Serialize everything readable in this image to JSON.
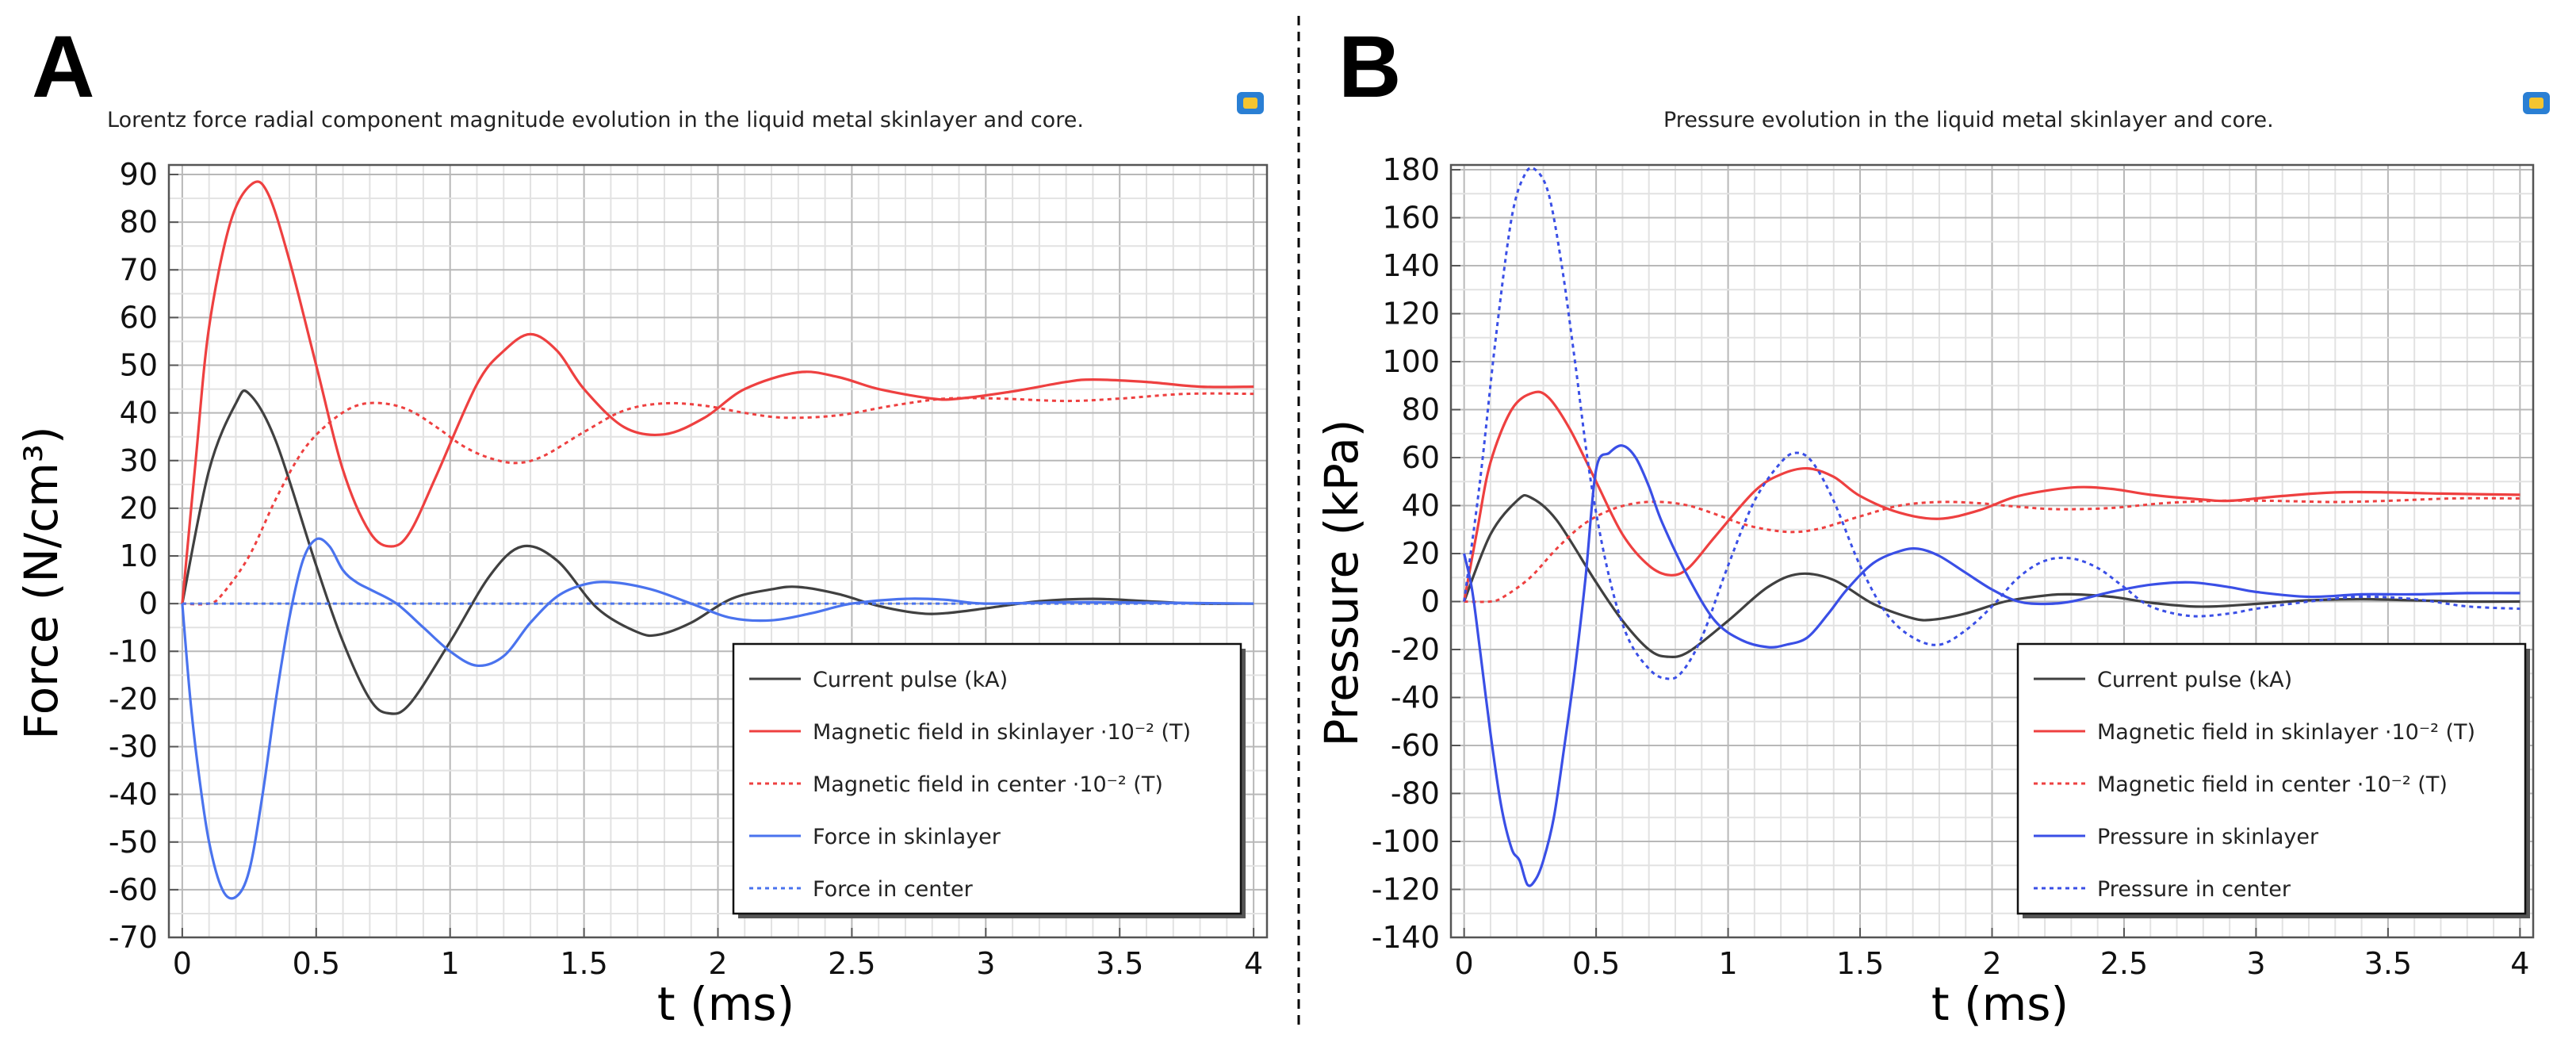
{
  "panels": [
    {
      "letter": "A"
    },
    {
      "letter": "B"
    }
  ],
  "chart_data": [
    {
      "type": "line",
      "panel": "A",
      "title": "Lorentz force radial component magnitude evolution in the liquid metal skinlayer and core.",
      "xlabel": "t (ms)",
      "ylabel": "Force (N/cm³)",
      "xlim": [
        -0.05,
        4.05
      ],
      "ylim": [
        -70,
        92
      ],
      "xticks": [
        0,
        0.5,
        1,
        1.5,
        2,
        2.5,
        3,
        3.5,
        4
      ],
      "xtick_labels": [
        "0",
        "0.5",
        "1",
        "1.5",
        "2",
        "2.5",
        "3",
        "3.5",
        "4"
      ],
      "yticks": [
        -70,
        -60,
        -50,
        -40,
        -30,
        -20,
        -10,
        0,
        10,
        20,
        30,
        40,
        50,
        60,
        70,
        80,
        90
      ],
      "ytick_labels": [
        "-70",
        "-60",
        "-50",
        "-40",
        "-30",
        "-20",
        "-10",
        "0",
        "10",
        "20",
        "30",
        "40",
        "50",
        "60",
        "70",
        "80",
        "90"
      ],
      "grid": true,
      "legend_position": "bottom-right",
      "series": [
        {
          "name": "Current pulse (kA)",
          "color": "#404040",
          "style": "solid",
          "x": [
            0,
            0.1,
            0.2,
            0.25,
            0.35,
            0.5,
            0.6,
            0.7,
            0.77,
            0.85,
            1.0,
            1.15,
            1.27,
            1.4,
            1.55,
            1.7,
            1.78,
            1.9,
            2.05,
            2.2,
            2.3,
            2.45,
            2.6,
            2.75,
            2.85,
            3.0,
            3.2,
            3.4,
            3.6,
            3.8,
            4.0
          ],
          "y": [
            0,
            28,
            42,
            44,
            34,
            8,
            -8,
            -20,
            -23,
            -21,
            -8,
            6,
            12,
            9,
            -1,
            -6,
            -6.5,
            -4,
            1,
            3,
            3.5,
            2,
            -0.5,
            -2,
            -2,
            -1,
            0.5,
            1,
            0.5,
            0,
            0
          ]
        },
        {
          "name": "Magnetic field in skinlayer ·10⁻² (T)",
          "color": "#ee4040",
          "style": "solid",
          "x": [
            0,
            0.05,
            0.1,
            0.18,
            0.26,
            0.32,
            0.4,
            0.5,
            0.6,
            0.7,
            0.78,
            0.85,
            0.95,
            1.1,
            1.2,
            1.3,
            1.4,
            1.5,
            1.65,
            1.8,
            1.95,
            2.1,
            2.3,
            2.45,
            2.6,
            2.8,
            2.9,
            3.1,
            3.3,
            3.4,
            3.6,
            3.8,
            4.0
          ],
          "y": [
            0,
            30,
            58,
            80,
            88,
            86,
            72,
            50,
            28,
            15,
            12,
            15,
            27,
            46,
            53,
            56.5,
            53,
            45,
            37,
            35.5,
            39,
            45,
            48.5,
            47.5,
            45,
            43,
            43,
            44.5,
            46.5,
            47,
            46.5,
            45.5,
            45.5
          ]
        },
        {
          "name": "Magnetic field in center ·10⁻² (T)",
          "color": "#ee4040",
          "style": "dotted",
          "x": [
            0,
            0.1,
            0.15,
            0.25,
            0.35,
            0.45,
            0.55,
            0.65,
            0.75,
            0.85,
            0.95,
            1.05,
            1.15,
            1.25,
            1.35,
            1.5,
            1.65,
            1.8,
            1.95,
            2.1,
            2.25,
            2.45,
            2.65,
            2.85,
            3.05,
            3.3,
            3.5,
            3.75,
            4.0
          ],
          "y": [
            0,
            0,
            2,
            10,
            22,
            32,
            38,
            41.5,
            42,
            40.5,
            37,
            33,
            30.5,
            29.5,
            31,
            36,
            40.5,
            42,
            41.5,
            40,
            39,
            39.5,
            41.5,
            43,
            43,
            42.5,
            43,
            44,
            44
          ]
        },
        {
          "name": "Force in skinlayer",
          "color": "#4a73ee",
          "style": "solid",
          "x": [
            0,
            0.03,
            0.06,
            0.1,
            0.15,
            0.2,
            0.25,
            0.3,
            0.35,
            0.4,
            0.45,
            0.5,
            0.55,
            0.6,
            0.65,
            0.7,
            0.8,
            0.9,
            1.0,
            1.1,
            1.2,
            1.3,
            1.4,
            1.5,
            1.6,
            1.75,
            1.9,
            2.05,
            2.2,
            2.35,
            2.5,
            2.7,
            2.85,
            3.0,
            3.3,
            3.6,
            4.0
          ],
          "y": [
            0,
            -20,
            -35,
            -50,
            -60,
            -61.5,
            -56,
            -40,
            -20,
            -3,
            9,
            13.5,
            12,
            7,
            4.5,
            3,
            0,
            -5,
            -10,
            -13,
            -11,
            -4,
            1.5,
            4,
            4.5,
            3,
            0,
            -3,
            -3.5,
            -2,
            0,
            1,
            0.8,
            0,
            0.3,
            0.2,
            0
          ]
        },
        {
          "name": "Force in center",
          "color": "#4a73ee",
          "style": "dotted",
          "x": [
            0,
            4.0
          ],
          "y": [
            0,
            0
          ]
        }
      ]
    },
    {
      "type": "line",
      "panel": "B",
      "title": "Pressure evolution in the liquid metal skinlayer and core.",
      "xlabel": "t (ms)",
      "ylabel": "Pressure (kPa)",
      "xlim": [
        -0.05,
        4.05
      ],
      "ylim": [
        -140,
        182
      ],
      "xticks": [
        0,
        0.5,
        1,
        1.5,
        2,
        2.5,
        3,
        3.5,
        4
      ],
      "xtick_labels": [
        "0",
        "0.5",
        "1",
        "1.5",
        "2",
        "2.5",
        "3",
        "3.5",
        "4"
      ],
      "yticks": [
        -140,
        -120,
        -100,
        -80,
        -60,
        -40,
        -20,
        0,
        20,
        40,
        60,
        80,
        100,
        120,
        140,
        160,
        180
      ],
      "ytick_labels": [
        "-140",
        "-120",
        "-100",
        "-80",
        "-60",
        "-40",
        "-20",
        "0",
        "20",
        "40",
        "60",
        "80",
        "100",
        "120",
        "140",
        "160",
        "180"
      ],
      "grid": true,
      "legend_position": "bottom-right",
      "series": [
        {
          "name": "Current pulse (kA)",
          "color": "#404040",
          "style": "solid",
          "x": [
            0,
            0.1,
            0.2,
            0.25,
            0.35,
            0.5,
            0.6,
            0.7,
            0.77,
            0.85,
            1.0,
            1.15,
            1.27,
            1.4,
            1.55,
            1.7,
            1.78,
            1.9,
            2.05,
            2.2,
            2.3,
            2.45,
            2.6,
            2.75,
            2.85,
            3.0,
            3.2,
            3.4,
            3.6,
            3.8,
            4.0
          ],
          "y": [
            0,
            28,
            42,
            43.5,
            34,
            8,
            -8,
            -20,
            -23,
            -21,
            -8,
            6,
            11.5,
            9,
            -1,
            -7,
            -7.5,
            -5,
            0,
            2.5,
            3,
            2,
            -0.5,
            -2,
            -2,
            -1,
            0.5,
            1,
            0.5,
            0,
            0
          ]
        },
        {
          "name": "Magnetic field in skinlayer ·10⁻² (T)",
          "color": "#ee4040",
          "style": "solid",
          "x": [
            0,
            0.05,
            0.1,
            0.18,
            0.26,
            0.32,
            0.4,
            0.5,
            0.6,
            0.7,
            0.78,
            0.85,
            0.95,
            1.1,
            1.2,
            1.3,
            1.4,
            1.5,
            1.65,
            1.8,
            1.95,
            2.1,
            2.3,
            2.45,
            2.6,
            2.8,
            2.9,
            3.1,
            3.3,
            3.5,
            3.7,
            4.0
          ],
          "y": [
            0,
            30,
            58,
            80,
            87,
            85,
            72,
            50,
            28,
            15,
            11,
            14,
            27,
            46,
            53,
            55.5,
            52,
            44,
            37,
            34.5,
            38,
            44,
            47.5,
            47,
            44.5,
            42.5,
            42,
            44,
            45.5,
            45.5,
            45,
            44.5
          ]
        },
        {
          "name": "Magnetic field in center ·10⁻² (T)",
          "color": "#ee4040",
          "style": "dotted",
          "x": [
            0,
            0.1,
            0.15,
            0.25,
            0.35,
            0.45,
            0.55,
            0.65,
            0.75,
            0.85,
            0.95,
            1.05,
            1.15,
            1.25,
            1.35,
            1.5,
            1.65,
            1.8,
            1.95,
            2.1,
            2.25,
            2.45,
            2.65,
            2.85,
            3.05,
            3.3,
            3.5,
            3.75,
            4.0
          ],
          "y": [
            0,
            0,
            2,
            10,
            22,
            32,
            38,
            41,
            41.5,
            40,
            36.5,
            32.5,
            30,
            29,
            30.5,
            35.5,
            40,
            41.5,
            41,
            39.5,
            38.5,
            39,
            41,
            42,
            42,
            41.5,
            42,
            43,
            43
          ]
        },
        {
          "name": "Pressure in skinlayer",
          "color": "#3a4fe6",
          "style": "solid",
          "x": [
            0,
            0.03,
            0.06,
            0.1,
            0.14,
            0.18,
            0.21,
            0.24,
            0.27,
            0.3,
            0.34,
            0.38,
            0.42,
            0.46,
            0.5,
            0.55,
            0.6,
            0.65,
            0.7,
            0.75,
            0.85,
            0.95,
            1.05,
            1.15,
            1.22,
            1.3,
            1.38,
            1.45,
            1.55,
            1.65,
            1.72,
            1.8,
            1.9,
            2.0,
            2.1,
            2.2,
            2.3,
            2.45,
            2.6,
            2.75,
            2.9,
            3.0,
            3.2,
            3.4,
            3.6,
            3.8,
            4.0
          ],
          "y": [
            20,
            5,
            -20,
            -55,
            -85,
            -103,
            -108,
            -118,
            -116,
            -108,
            -90,
            -60,
            -28,
            10,
            55,
            62,
            65,
            60,
            48,
            33,
            10,
            -8,
            -16,
            -19,
            -18,
            -15,
            -5,
            5,
            16,
            21,
            22,
            19,
            12,
            5,
            0,
            -1,
            0,
            4,
            7,
            8,
            6,
            4,
            2,
            3,
            3,
            3.5,
            3.5
          ]
        },
        {
          "name": "Pressure in center",
          "color": "#3a4fe6",
          "style": "dotted",
          "x": [
            0,
            0.06,
            0.12,
            0.18,
            0.23,
            0.27,
            0.32,
            0.37,
            0.42,
            0.48,
            0.55,
            0.62,
            0.7,
            0.76,
            0.82,
            0.9,
            1.0,
            1.1,
            1.2,
            1.26,
            1.32,
            1.4,
            1.5,
            1.6,
            1.7,
            1.8,
            1.9,
            2.0,
            2.1,
            2.2,
            2.3,
            2.4,
            2.5,
            2.6,
            2.75,
            2.9,
            3.0,
            3.2,
            3.4,
            3.6,
            3.8,
            4.0
          ],
          "y": [
            0,
            50,
            110,
            160,
            178,
            180,
            170,
            140,
            100,
            50,
            10,
            -15,
            -28,
            -32,
            -30,
            -15,
            15,
            42,
            58,
            62,
            58,
            42,
            15,
            -5,
            -15,
            -18,
            -12,
            -2,
            10,
            17,
            18,
            14,
            6,
            -2,
            -6,
            -5,
            -3,
            0,
            2,
            1,
            -2,
            -3
          ]
        }
      ]
    }
  ]
}
